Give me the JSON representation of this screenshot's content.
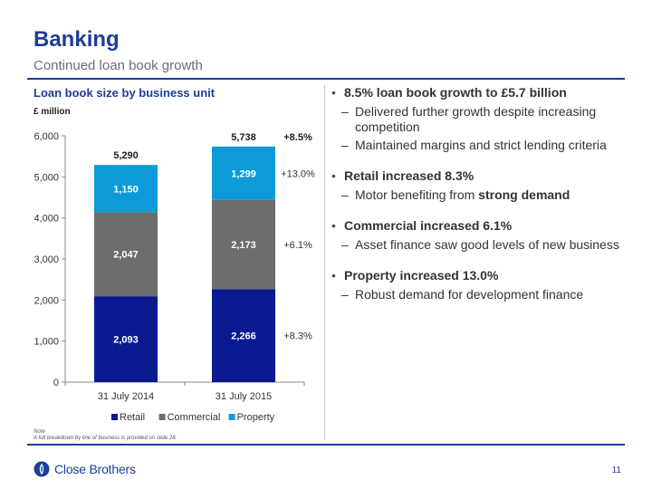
{
  "header": {
    "title": "Banking",
    "subtitle": "Continued loan book growth"
  },
  "left": {
    "chart_title": "Loan book size by business unit",
    "unit": "£ million",
    "note_label": "Note",
    "note_text": "A full breakdown by line of business is provided on slide 28."
  },
  "chart_data": {
    "type": "bar",
    "stacked": true,
    "categories": [
      "31 July 2014",
      "31 July 2015"
    ],
    "series": [
      {
        "name": "Retail",
        "values": [
          2093,
          2266
        ],
        "labels": [
          "2,093",
          "2,266"
        ],
        "growth": "+8.3%",
        "color": "#0b1a91"
      },
      {
        "name": "Commercial",
        "values": [
          2047,
          2173
        ],
        "labels": [
          "2,047",
          "2,173"
        ],
        "growth": "+6.1%",
        "color": "#6d6d6d"
      },
      {
        "name": "Property",
        "values": [
          1150,
          1299
        ],
        "labels": [
          "1,150",
          "1,299"
        ],
        "growth": "+13.0%",
        "color": "#0a9bd8"
      }
    ],
    "totals": [
      "5,290",
      "5,738"
    ],
    "total_growth": "+8.5%",
    "ylim": [
      0,
      6000
    ],
    "yticks": [
      0,
      1000,
      2000,
      3000,
      4000,
      5000,
      6000
    ],
    "ytick_labels": [
      "0",
      "1,000",
      "2,000",
      "3,000",
      "4,000",
      "5,000",
      "6,000"
    ],
    "legend_position": "bottom",
    "grid": false
  },
  "right": {
    "groups": [
      {
        "bullet": "8.5% loan book growth to £5.7 billion",
        "subs": [
          "Delivered further growth despite increasing competition",
          "Maintained margins and strict lending criteria"
        ]
      },
      {
        "bullet": "Retail increased 8.3%",
        "subs": [
          "Motor benefiting from ",
          "strong demand"
        ]
      },
      {
        "bullet": "Commercial increased 6.1%",
        "subs": [
          "Asset finance saw good levels of new business"
        ]
      },
      {
        "bullet": "Property increased 13.0%",
        "subs": [
          "Robust demand for development finance"
        ]
      }
    ]
  },
  "footer": {
    "brand": "Close Brothers",
    "page": "11",
    "logo_icon": "close-brothers-logo-icon"
  }
}
